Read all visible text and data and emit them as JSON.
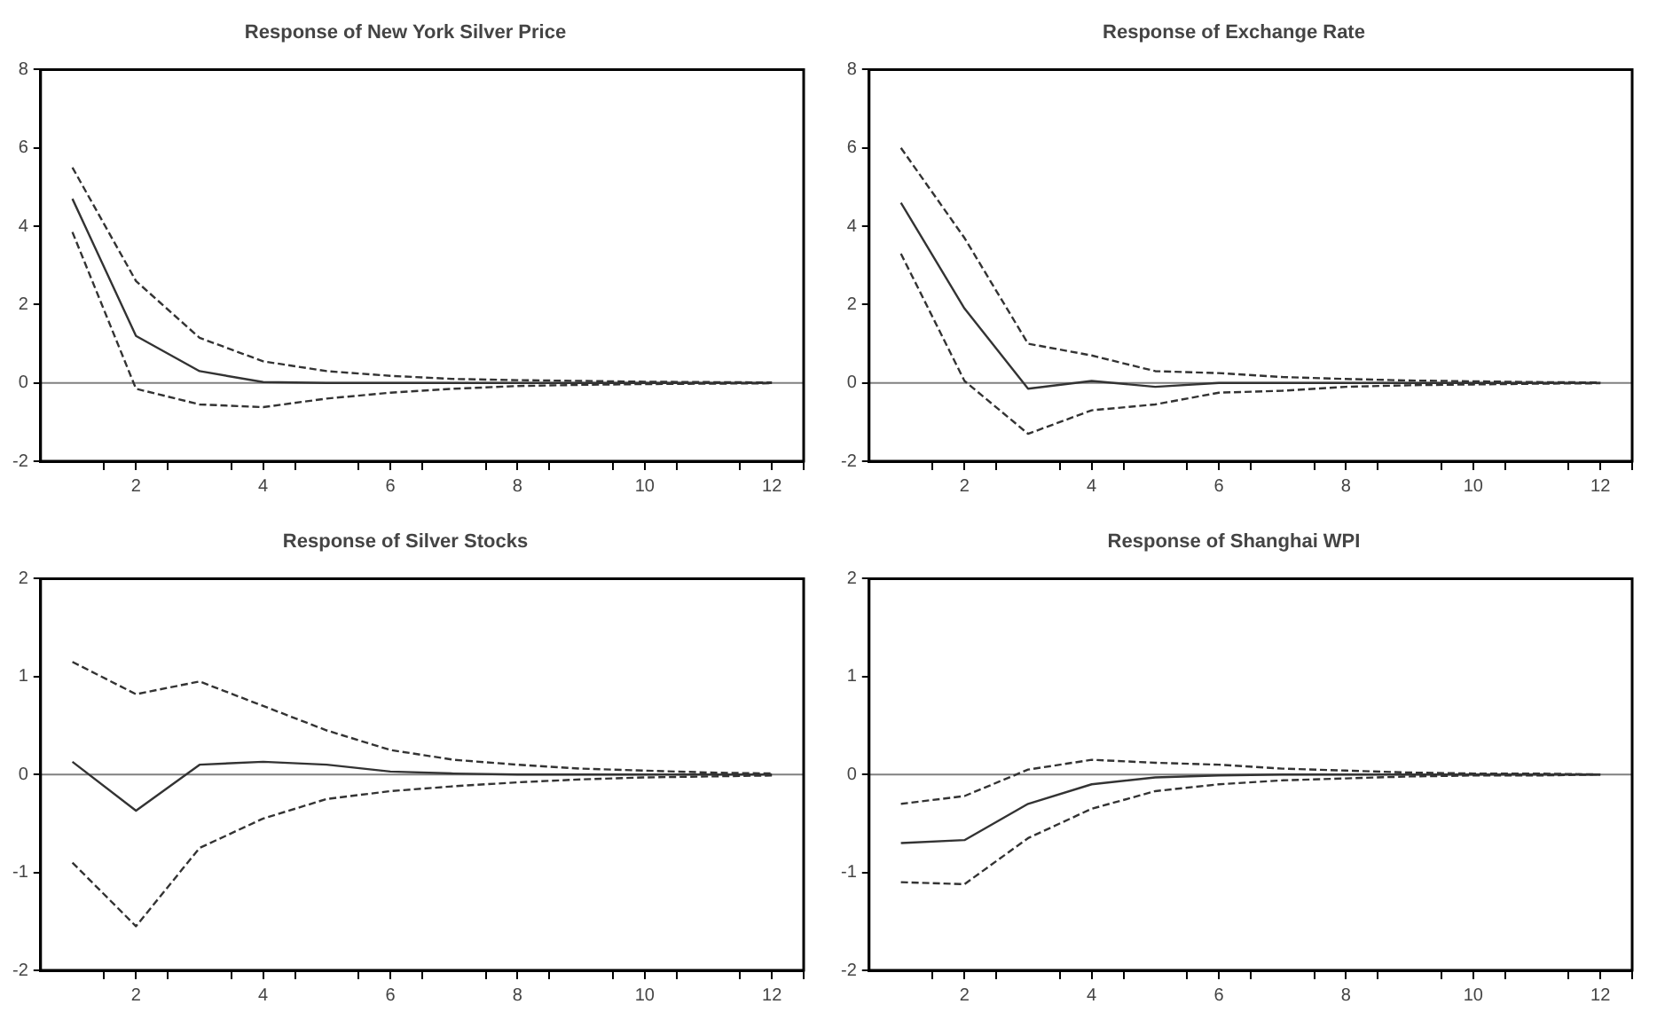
{
  "chart_data": [
    {
      "type": "line",
      "title": "Response of New York Silver Price",
      "x": [
        1,
        2,
        3,
        4,
        5,
        6,
        7,
        8,
        9,
        10,
        11,
        12
      ],
      "xlim": [
        0.5,
        12.5
      ],
      "xticks": [
        {
          "value": 1.5,
          "label": null
        },
        2,
        {
          "value": 2.5,
          "label": null
        },
        {
          "value": 3.5,
          "label": null
        },
        4,
        {
          "value": 4.5,
          "label": null
        },
        {
          "value": 5.5,
          "label": null
        },
        6,
        {
          "value": 6.5,
          "label": null
        },
        {
          "value": 7.5,
          "label": null
        },
        8,
        {
          "value": 8.5,
          "label": null
        },
        {
          "value": 9.5,
          "label": null
        },
        10,
        {
          "value": 10.5,
          "label": null
        },
        {
          "value": 11.5,
          "label": null
        },
        12,
        {
          "value": 12.5,
          "label": null
        }
      ],
      "ylim": [
        -2,
        8
      ],
      "yticks": [
        -2,
        0,
        2,
        4,
        6,
        8
      ],
      "grid": false,
      "legend": false,
      "ref_lines": [
        {
          "axis": "y",
          "value": 0,
          "color": "#808080"
        }
      ],
      "series": [
        {
          "color": "#333333",
          "line_style": "dashed",
          "values": [
            5.5,
            2.6,
            1.15,
            0.55,
            0.3,
            0.18,
            0.1,
            0.07,
            0.05,
            0.03,
            0.02,
            0.01
          ]
        },
        {
          "color": "#333333",
          "line_style": "solid",
          "values": [
            4.7,
            1.2,
            0.3,
            0.02,
            0,
            0,
            0,
            0,
            0,
            0,
            0,
            0
          ]
        },
        {
          "color": "#333333",
          "line_style": "dashed",
          "values": [
            3.85,
            -0.15,
            -0.55,
            -0.62,
            -0.4,
            -0.25,
            -0.15,
            -0.08,
            -0.05,
            -0.03,
            -0.02,
            -0.01
          ]
        }
      ]
    },
    {
      "type": "line",
      "title": "Response of Exchange Rate",
      "x": [
        1,
        2,
        3,
        4,
        5,
        6,
        7,
        8,
        9,
        10,
        11,
        12
      ],
      "xlim": [
        0.5,
        12.5
      ],
      "xticks": [
        {
          "value": 1.5,
          "label": null
        },
        2,
        {
          "value": 2.5,
          "label": null
        },
        {
          "value": 3.5,
          "label": null
        },
        4,
        {
          "value": 4.5,
          "label": null
        },
        {
          "value": 5.5,
          "label": null
        },
        6,
        {
          "value": 6.5,
          "label": null
        },
        {
          "value": 7.5,
          "label": null
        },
        8,
        {
          "value": 8.5,
          "label": null
        },
        {
          "value": 9.5,
          "label": null
        },
        10,
        {
          "value": 10.5,
          "label": null
        },
        {
          "value": 11.5,
          "label": null
        },
        12,
        {
          "value": 12.5,
          "label": null
        }
      ],
      "ylim": [
        -2,
        8
      ],
      "yticks": [
        -2,
        0,
        2,
        4,
        6,
        8
      ],
      "grid": false,
      "legend": false,
      "ref_lines": [
        {
          "axis": "y",
          "value": 0,
          "color": "#808080"
        }
      ],
      "series": [
        {
          "color": "#333333",
          "line_style": "dashed",
          "values": [
            6.0,
            3.7,
            1.0,
            0.7,
            0.3,
            0.25,
            0.15,
            0.1,
            0.06,
            0.04,
            0.02,
            0.01
          ]
        },
        {
          "color": "#333333",
          "line_style": "solid",
          "values": [
            4.6,
            1.9,
            -0.15,
            0.05,
            -0.1,
            0,
            0,
            0,
            0,
            0,
            0,
            0
          ]
        },
        {
          "color": "#333333",
          "line_style": "dashed",
          "values": [
            3.3,
            0.05,
            -1.3,
            -0.7,
            -0.55,
            -0.25,
            -0.2,
            -0.1,
            -0.06,
            -0.04,
            -0.02,
            -0.01
          ]
        }
      ]
    },
    {
      "type": "line",
      "title": "Response of Silver Stocks",
      "x": [
        1,
        2,
        3,
        4,
        5,
        6,
        7,
        8,
        9,
        10,
        11,
        12
      ],
      "xlim": [
        0.5,
        12.5
      ],
      "xticks": [
        {
          "value": 1.5,
          "label": null
        },
        2,
        {
          "value": 2.5,
          "label": null
        },
        {
          "value": 3.5,
          "label": null
        },
        4,
        {
          "value": 4.5,
          "label": null
        },
        {
          "value": 5.5,
          "label": null
        },
        6,
        {
          "value": 6.5,
          "label": null
        },
        {
          "value": 7.5,
          "label": null
        },
        8,
        {
          "value": 8.5,
          "label": null
        },
        {
          "value": 9.5,
          "label": null
        },
        10,
        {
          "value": 10.5,
          "label": null
        },
        {
          "value": 11.5,
          "label": null
        },
        12,
        {
          "value": 12.5,
          "label": null
        }
      ],
      "ylim": [
        -2,
        2
      ],
      "yticks": [
        -2,
        -1,
        0,
        1,
        2
      ],
      "grid": false,
      "legend": false,
      "ref_lines": [
        {
          "axis": "y",
          "value": 0,
          "color": "#808080"
        }
      ],
      "series": [
        {
          "color": "#333333",
          "line_style": "dashed",
          "values": [
            1.15,
            0.82,
            0.95,
            0.7,
            0.45,
            0.25,
            0.15,
            0.1,
            0.06,
            0.04,
            0.02,
            0.01
          ]
        },
        {
          "color": "#333333",
          "line_style": "solid",
          "values": [
            0.13,
            -0.37,
            0.1,
            0.13,
            0.1,
            0.03,
            0.01,
            0,
            0,
            0,
            0,
            0
          ]
        },
        {
          "color": "#333333",
          "line_style": "dashed",
          "values": [
            -0.9,
            -1.55,
            -0.75,
            -0.45,
            -0.25,
            -0.17,
            -0.12,
            -0.08,
            -0.05,
            -0.03,
            -0.02,
            -0.01
          ]
        }
      ]
    },
    {
      "type": "line",
      "title": "Response of Shanghai WPI",
      "x": [
        1,
        2,
        3,
        4,
        5,
        6,
        7,
        8,
        9,
        10,
        11,
        12
      ],
      "xlim": [
        0.5,
        12.5
      ],
      "xticks": [
        {
          "value": 1.5,
          "label": null
        },
        2,
        {
          "value": 2.5,
          "label": null
        },
        {
          "value": 3.5,
          "label": null
        },
        4,
        {
          "value": 4.5,
          "label": null
        },
        {
          "value": 5.5,
          "label": null
        },
        6,
        {
          "value": 6.5,
          "label": null
        },
        {
          "value": 7.5,
          "label": null
        },
        8,
        {
          "value": 8.5,
          "label": null
        },
        {
          "value": 9.5,
          "label": null
        },
        10,
        {
          "value": 10.5,
          "label": null
        },
        {
          "value": 11.5,
          "label": null
        },
        12,
        {
          "value": 12.5,
          "label": null
        }
      ],
      "ylim": [
        -2,
        2
      ],
      "yticks": [
        -2,
        -1,
        0,
        1,
        2
      ],
      "grid": false,
      "legend": false,
      "ref_lines": [
        {
          "axis": "y",
          "value": 0,
          "color": "#808080"
        }
      ],
      "series": [
        {
          "color": "#333333",
          "line_style": "dashed",
          "values": [
            -0.3,
            -0.22,
            0.05,
            0.15,
            0.12,
            0.1,
            0.06,
            0.04,
            0.02,
            0.01,
            0.01,
            0
          ]
        },
        {
          "color": "#333333",
          "line_style": "solid",
          "values": [
            -0.7,
            -0.67,
            -0.3,
            -0.1,
            -0.03,
            -0.01,
            0,
            0,
            0,
            0,
            0,
            0
          ]
        },
        {
          "color": "#333333",
          "line_style": "dashed",
          "values": [
            -1.1,
            -1.12,
            -0.65,
            -0.35,
            -0.17,
            -0.1,
            -0.06,
            -0.04,
            -0.02,
            -0.01,
            -0.01,
            0
          ]
        }
      ]
    }
  ]
}
